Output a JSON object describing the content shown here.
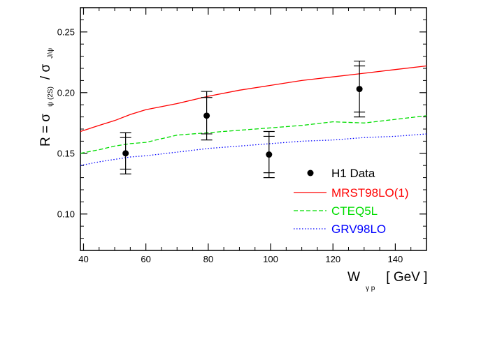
{
  "chart_data": {
    "type": "line",
    "xlim": [
      39,
      150
    ],
    "ylim": [
      0.07,
      0.27
    ],
    "xticks": [
      "40",
      "60",
      "80",
      "100",
      "120",
      "140"
    ],
    "yticks": [
      "0.10",
      "0.15",
      "0.20",
      "0.25"
    ],
    "ylabel": {
      "p1": "R = σ",
      "sub1": "ψ (2S)",
      "p2": "/ σ",
      "sub2": "J/ψ"
    },
    "xlabel": {
      "main": "W",
      "sub": "γ p",
      "unit": "[ GeV ]"
    },
    "grid": false,
    "legend_position": "lower-right",
    "points": {
      "name": "H1 Data",
      "x": [
        53.5,
        79.5,
        99.5,
        128.5
      ],
      "y": [
        0.15,
        0.181,
        0.149,
        0.203
      ],
      "err_stat": [
        0.013,
        0.015,
        0.015,
        0.019
      ],
      "err_tot": [
        0.017,
        0.02,
        0.019,
        0.023
      ]
    },
    "series": [
      {
        "name": "MRST98LO(1)",
        "color": "#ff0000",
        "style": "solid",
        "x": [
          39,
          45,
          50,
          55,
          60,
          70,
          80,
          90,
          100,
          110,
          120,
          130,
          140,
          150
        ],
        "y": [
          0.168,
          0.173,
          0.177,
          0.182,
          0.186,
          0.191,
          0.197,
          0.202,
          0.206,
          0.21,
          0.213,
          0.216,
          0.219,
          0.222
        ]
      },
      {
        "name": "CTEQ5L",
        "color": "#00dd00",
        "style": "dashed",
        "x": [
          39,
          45,
          50,
          55,
          60,
          70,
          80,
          90,
          100,
          110,
          120,
          130,
          140,
          150
        ],
        "y": [
          0.15,
          0.153,
          0.156,
          0.158,
          0.159,
          0.165,
          0.167,
          0.169,
          0.171,
          0.173,
          0.176,
          0.175,
          0.178,
          0.181
        ]
      },
      {
        "name": "GRV98LO",
        "color": "#0000ff",
        "style": "dotted",
        "x": [
          39,
          45,
          50,
          55,
          60,
          70,
          80,
          90,
          100,
          110,
          120,
          130,
          140,
          150
        ],
        "y": [
          0.14,
          0.143,
          0.145,
          0.147,
          0.148,
          0.151,
          0.154,
          0.156,
          0.158,
          0.16,
          0.161,
          0.163,
          0.164,
          0.166
        ]
      }
    ]
  }
}
